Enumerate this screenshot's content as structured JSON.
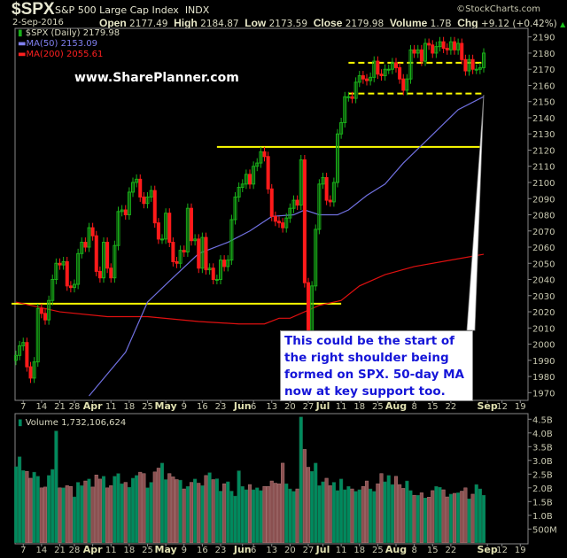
{
  "header": {
    "symbol": "$SPX",
    "name": "S&P 500 Large Cap Index",
    "exchange": "INDX",
    "copyright": "©StockCharts.com",
    "date": "2-Sep-2016",
    "open_label": "Open",
    "open": "2177.49",
    "high_label": "High",
    "high": "2184.87",
    "low_label": "Low",
    "low": "2173.59",
    "close_label": "Close",
    "close": "2179.98",
    "volume_label": "Volume",
    "volume": "1.7B",
    "chg_label": "Chg",
    "chg": "+9.12 (+0.42%)",
    "chg_arrow_icon": "triangle-up-icon"
  },
  "watermark": "www.SharePlanner.com",
  "annotation": "This could be the start of the right shoulder being formed on SPX. 50-day MA now at key support too.",
  "colors": {
    "up": "#19b019",
    "down": "#ff1a1a",
    "ma50": "#7070e0",
    "ma200": "#e01010",
    "level": "#ffff00",
    "vol_up": "#008a5e",
    "vol_down": "#8a5050"
  },
  "chart_data": [
    {
      "type": "candlestick",
      "legend": {
        "series": "$SPX (Daily) 2179.98",
        "ma50": "MA(50) 2153.09",
        "ma200": "MA(200) 2055.61",
        "placement": "top-left"
      },
      "first_date": "2016-03-03",
      "last_date": "2016-09-02",
      "ylim": [
        1965,
        2195
      ],
      "yticks": [
        1970,
        1980,
        1990,
        2000,
        2010,
        2020,
        2030,
        2040,
        2050,
        2060,
        2070,
        2080,
        2090,
        2100,
        2110,
        2120,
        2130,
        2140,
        2150,
        2160,
        2170,
        2180,
        2190
      ],
      "xticks": [
        [
          "7",
          "2016-03-07"
        ],
        [
          "14",
          "2016-03-14"
        ],
        [
          "21",
          "2016-03-21"
        ],
        [
          "28",
          "2016-03-28"
        ],
        [
          "Apr",
          "2016-04-04"
        ],
        [
          "11",
          "2016-04-11"
        ],
        [
          "18",
          "2016-04-18"
        ],
        [
          "25",
          "2016-04-25"
        ],
        [
          "May",
          "2016-05-02"
        ],
        [
          "9",
          "2016-05-09"
        ],
        [
          "16",
          "2016-05-16"
        ],
        [
          "23",
          "2016-05-23"
        ],
        [
          "Jun",
          "2016-06-01"
        ],
        [
          "6",
          "2016-06-06"
        ],
        [
          "13",
          "2016-06-13"
        ],
        [
          "20",
          "2016-06-20"
        ],
        [
          "27",
          "2016-06-27"
        ],
        [
          "Jul",
          "2016-07-01"
        ],
        [
          "11",
          "2016-07-11"
        ],
        [
          "18",
          "2016-07-18"
        ],
        [
          "25",
          "2016-07-25"
        ],
        [
          "Aug",
          "2016-08-01"
        ],
        [
          "8",
          "2016-08-08"
        ],
        [
          "15",
          "2016-08-15"
        ],
        [
          "22",
          "2016-08-22"
        ],
        [
          "Sep",
          "2016-09-06"
        ],
        [
          "12",
          "2016-09-12"
        ],
        [
          "19",
          "2016-09-19"
        ]
      ],
      "close": [
        1993,
        1999,
        2001,
        1986,
        1979,
        1989,
        2022,
        2019,
        2015,
        2027,
        2040,
        2050,
        2049,
        2051,
        2036,
        2035,
        2037,
        2056,
        2063,
        2060,
        2072,
        2067,
        2045,
        2041,
        2063,
        2047,
        2041,
        2061,
        2082,
        2083,
        2080,
        2094,
        2100,
        2102,
        2091,
        2087,
        2091,
        2095,
        2075,
        2065,
        2065,
        2081,
        2063,
        2051,
        2050,
        2058,
        2057,
        2084,
        2064,
        2065,
        2047,
        2066,
        2046,
        2047,
        2040,
        2040,
        2052,
        2048,
        2052,
        2077,
        2091,
        2097,
        2099,
        2105,
        2099,
        2110,
        2112,
        2119,
        2116,
        2096,
        2079,
        2076,
        2075,
        2072,
        2078,
        2084,
        2089,
        2086,
        2114,
        2038,
        2001,
        2036,
        2071,
        2099,
        2103,
        2089,
        2088,
        2100,
        2130,
        2137,
        2153,
        2153,
        2152,
        2162,
        2166,
        2164,
        2163,
        2165,
        2175,
        2167,
        2166,
        2170,
        2170,
        2174,
        2171,
        2164,
        2157,
        2164,
        2182,
        2180,
        2182,
        2175,
        2186,
        2185,
        2180,
        2184,
        2187,
        2183,
        2182,
        2187,
        2182,
        2186,
        2176,
        2169,
        2176,
        2170,
        2170,
        2171,
        2180
      ],
      "ma50": [
        [
          "2016-04-01",
          1968
        ],
        [
          "2016-04-15",
          1995
        ],
        [
          "2016-04-25",
          2026
        ],
        [
          "2016-05-03",
          2039
        ],
        [
          "2016-05-13",
          2056
        ],
        [
          "2016-05-25",
          2063
        ],
        [
          "2016-06-03",
          2070
        ],
        [
          "2016-06-13",
          2079
        ],
        [
          "2016-06-21",
          2080
        ],
        [
          "2016-06-24",
          2083
        ],
        [
          "2016-06-30",
          2080
        ],
        [
          "2016-07-08",
          2080
        ],
        [
          "2016-07-13",
          2083
        ],
        [
          "2016-07-20",
          2092
        ],
        [
          "2016-07-27",
          2099
        ],
        [
          "2016-08-03",
          2112
        ],
        [
          "2016-08-10",
          2123
        ],
        [
          "2016-08-17",
          2134
        ],
        [
          "2016-08-24",
          2145
        ],
        [
          "2016-09-02",
          2153.09
        ]
      ],
      "ma200": [
        [
          "2016-03-03",
          2026
        ],
        [
          "2016-03-21",
          2020
        ],
        [
          "2016-04-08",
          2017
        ],
        [
          "2016-04-25",
          2017
        ],
        [
          "2016-05-13",
          2014
        ],
        [
          "2016-05-31",
          2012.5
        ],
        [
          "2016-06-09",
          2012.5
        ],
        [
          "2016-06-15",
          2016
        ],
        [
          "2016-06-20",
          2016
        ],
        [
          "2016-06-30",
          2024
        ],
        [
          "2016-07-11",
          2027
        ],
        [
          "2016-07-18",
          2036
        ],
        [
          "2016-07-27",
          2043
        ],
        [
          "2016-08-08",
          2048
        ],
        [
          "2016-08-22",
          2052
        ],
        [
          "2016-09-02",
          2055.61
        ]
      ],
      "levels": [
        {
          "price": 2025,
          "from": "2016-03-01",
          "to": "2016-07-11",
          "style": "solid"
        },
        {
          "price": 2122,
          "from": "2016-05-20",
          "to": "2016-09-01",
          "style": "solid"
        },
        {
          "price": 2174,
          "from": "2016-07-13",
          "to": "2016-09-02",
          "style": "dashed"
        },
        {
          "price": 2155,
          "from": "2016-07-13",
          "to": "2016-09-02",
          "style": "dashed"
        }
      ]
    },
    {
      "type": "bar",
      "legend": "Volume 1,732,106,624",
      "unit": "B",
      "ylim": [
        0,
        4.75
      ],
      "yticks": [
        [
          "500M",
          0.5
        ],
        [
          "1.0B",
          1.0
        ],
        [
          "1.5B",
          1.5
        ],
        [
          "2.0B",
          2.0
        ],
        [
          "2.5B",
          2.5
        ],
        [
          "3.0B",
          3.0
        ],
        [
          "3.5B",
          3.5
        ],
        [
          "4.0B",
          4.0
        ],
        [
          "4.5B",
          4.5
        ]
      ],
      "values": [
        2.77,
        3.13,
        2.63,
        2.6,
        2.35,
        2.57,
        2.42,
        2.0,
        2.03,
        2.45,
        2.67,
        4.07,
        2.0,
        2.0,
        2.08,
        2.05,
        1.67,
        2.2,
        2.08,
        2.25,
        2.32,
        2.03,
        2.47,
        2.32,
        2.42,
        2.0,
        2.08,
        2.42,
        2.52,
        2.15,
        2.2,
        2.02,
        2.35,
        2.45,
        2.57,
        2.52,
        2.0,
        2.2,
        2.58,
        2.72,
        2.9,
        2.3,
        2.52,
        2.4,
        2.3,
        2.28,
        1.96,
        2.05,
        2.2,
        2.32,
        2.17,
        2.08,
        2.45,
        2.55,
        2.3,
        2.33,
        1.88,
        2.15,
        2.22,
        1.88,
        1.7,
        2.62,
        2.05,
        1.93,
        2.12,
        1.93,
        2.0,
        1.9,
        2.05,
        2.05,
        2.25,
        2.17,
        2.15,
        2.9,
        2.15,
        1.96,
        1.87,
        1.96,
        4.58,
        3.4,
        2.75,
        2.6,
        2.9,
        2.08,
        2.22,
        2.35,
        2.08,
        2.2,
        1.9,
        2.32,
        1.93,
        2.05,
        1.96,
        1.87,
        1.93,
        2.05,
        2.25,
        1.96,
        1.87,
        2.15,
        2.52,
        2.22,
        2.45,
        2.12,
        2.42,
        2.12,
        1.98,
        2.25,
        1.9,
        1.73,
        1.73,
        1.82,
        1.63,
        1.66,
        1.9,
        2.05,
        2.02,
        1.93,
        1.67,
        1.77,
        1.8,
        1.82,
        1.88,
        2.0,
        1.6,
        1.77,
        2.12,
        1.96,
        1.73
      ]
    }
  ]
}
